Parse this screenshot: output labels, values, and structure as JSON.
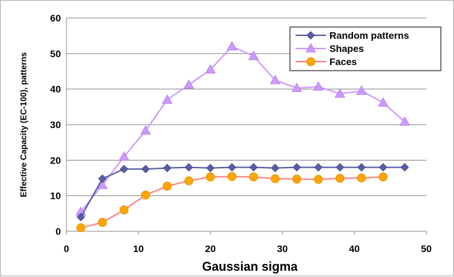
{
  "chart_data": {
    "type": "line",
    "xlabel": "Gaussian sigma",
    "ylabel": "Effective Capacity (EC-100), patterns",
    "xlim": [
      0,
      50
    ],
    "ylim": [
      0,
      60
    ],
    "x_ticks": [
      "0",
      "10",
      "20",
      "30",
      "40",
      "50"
    ],
    "y_ticks": [
      "0",
      "10",
      "20",
      "30",
      "40",
      "50",
      "60"
    ],
    "grid": "horizontal",
    "legend_position": "top-right",
    "series": [
      {
        "name": "Random patterns",
        "color": "#5b5ea6",
        "marker": "diamond",
        "x": [
          2,
          5,
          8,
          11,
          14,
          17,
          20,
          23,
          26,
          29,
          32,
          35,
          38,
          41,
          44,
          47
        ],
        "y": [
          4,
          14.8,
          17.5,
          17.5,
          17.8,
          18,
          17.8,
          18,
          18,
          17.8,
          18,
          18,
          18,
          18,
          18,
          18
        ]
      },
      {
        "name": "Shapes",
        "color": "#cc99ff",
        "marker": "triangle",
        "x": [
          2,
          5,
          8,
          11,
          14,
          17,
          20,
          23,
          26,
          29,
          32,
          35,
          38,
          41,
          44,
          47
        ],
        "y": [
          5.5,
          13,
          21,
          28.3,
          37,
          41.2,
          45.5,
          52,
          49.3,
          42.5,
          40.3,
          40.7,
          38.7,
          39.5,
          36.2,
          30.8
        ]
      },
      {
        "name": "Faces",
        "color": "#f4a460",
        "line_color": "#ff8080",
        "marker": "circle",
        "x": [
          2,
          5,
          8,
          11,
          14,
          17,
          20,
          23,
          26,
          29,
          32,
          35,
          38,
          41,
          44
        ],
        "y": [
          1,
          2.5,
          6,
          10.2,
          12.7,
          14.2,
          15.3,
          15.4,
          15.3,
          14.8,
          14.7,
          14.6,
          14.9,
          15,
          15.3
        ]
      }
    ]
  }
}
